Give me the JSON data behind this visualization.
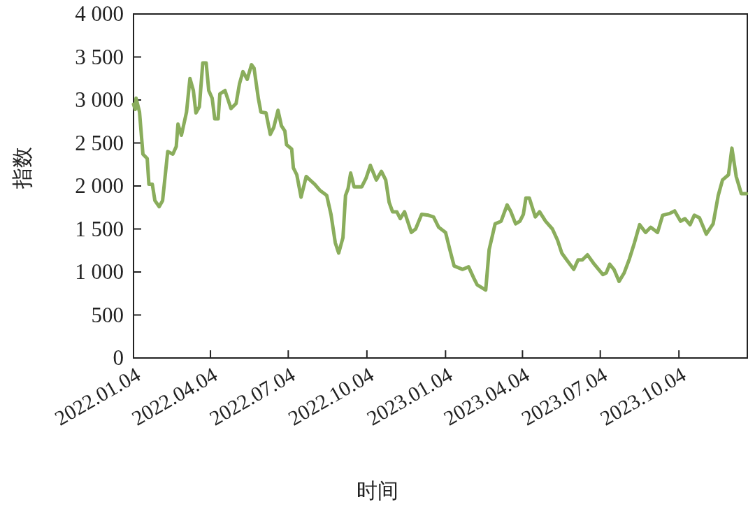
{
  "chart_data": {
    "type": "line",
    "xlabel": "时间",
    "ylabel": "指数",
    "x": [
      "2022-01-04",
      "2022-01-06",
      "2022-01-07",
      "2022-01-11",
      "2022-01-15",
      "2022-01-20",
      "2022-01-22",
      "2022-01-26",
      "2022-01-29",
      "2022-02-03",
      "2022-02-07",
      "2022-02-13",
      "2022-02-19",
      "2022-02-23",
      "2022-02-25",
      "2022-03-01",
      "2022-03-07",
      "2022-03-11",
      "2022-03-15",
      "2022-03-18",
      "2022-03-22",
      "2022-03-26",
      "2022-03-30",
      "2022-04-02",
      "2022-04-06",
      "2022-04-09",
      "2022-04-13",
      "2022-04-15",
      "2022-04-21",
      "2022-04-28",
      "2022-05-04",
      "2022-05-08",
      "2022-05-12",
      "2022-05-17",
      "2022-05-22",
      "2022-05-25",
      "2022-05-30",
      "2022-06-02",
      "2022-06-08",
      "2022-06-13",
      "2022-06-17",
      "2022-06-22",
      "2022-06-26",
      "2022-06-30",
      "2022-07-02",
      "2022-07-08",
      "2022-07-10",
      "2022-07-14",
      "2022-07-19",
      "2022-07-25",
      "2022-08-04",
      "2022-08-10",
      "2022-08-18",
      "2022-08-23",
      "2022-08-28",
      "2022-09-01",
      "2022-09-06",
      "2022-09-09",
      "2022-09-12",
      "2022-09-15",
      "2022-09-19",
      "2022-09-28",
      "2022-10-03",
      "2022-10-08",
      "2022-10-15",
      "2022-10-21",
      "2022-10-26",
      "2022-10-30",
      "2022-11-03",
      "2022-11-08",
      "2022-11-12",
      "2022-11-17",
      "2022-11-25",
      "2022-11-30",
      "2022-12-07",
      "2022-12-15",
      "2022-12-21",
      "2022-12-27",
      "2023-01-04",
      "2023-01-09",
      "2023-01-14",
      "2023-01-24",
      "2023-01-31",
      "2023-02-06",
      "2023-02-10",
      "2023-02-20",
      "2023-02-24",
      "2023-03-03",
      "2023-03-10",
      "2023-03-17",
      "2023-03-21",
      "2023-03-27",
      "2023-04-01",
      "2023-04-05",
      "2023-04-08",
      "2023-04-12",
      "2023-04-19",
      "2023-04-24",
      "2023-05-01",
      "2023-05-09",
      "2023-05-15",
      "2023-05-20",
      "2023-05-25",
      "2023-06-03",
      "2023-06-08",
      "2023-06-13",
      "2023-06-19",
      "2023-06-27",
      "2023-07-07",
      "2023-07-11",
      "2023-07-15",
      "2023-07-20",
      "2023-07-26",
      "2023-08-01",
      "2023-08-07",
      "2023-08-13",
      "2023-08-19",
      "2023-08-26",
      "2023-09-01",
      "2023-09-09",
      "2023-09-15",
      "2023-09-23",
      "2023-09-29",
      "2023-10-06",
      "2023-10-11",
      "2023-10-17",
      "2023-10-22",
      "2023-10-28",
      "2023-11-05",
      "2023-11-13",
      "2023-11-19",
      "2023-11-24",
      "2023-12-01",
      "2023-12-05",
      "2023-12-10",
      "2023-12-16",
      "2023-12-22"
    ],
    "series": [
      {
        "color": "#8aad5c",
        "values": [
          2950,
          2890,
          3020,
          2860,
          2370,
          2320,
          2020,
          2020,
          1830,
          1760,
          1830,
          2400,
          2370,
          2460,
          2720,
          2590,
          2860,
          3250,
          3110,
          2850,
          2920,
          3430,
          3430,
          3110,
          3020,
          2780,
          2780,
          3070,
          3110,
          2900,
          2960,
          3190,
          3330,
          3240,
          3410,
          3370,
          3020,
          2860,
          2850,
          2600,
          2680,
          2880,
          2700,
          2640,
          2480,
          2430,
          2210,
          2130,
          1870,
          2110,
          2020,
          1950,
          1890,
          1670,
          1340,
          1220,
          1400,
          1890,
          1970,
          2150,
          1990,
          1990,
          2090,
          2240,
          2070,
          2170,
          2070,
          1810,
          1700,
          1700,
          1620,
          1700,
          1460,
          1500,
          1670,
          1660,
          1640,
          1520,
          1460,
          1260,
          1070,
          1030,
          1060,
          930,
          850,
          790,
          1260,
          1560,
          1590,
          1780,
          1710,
          1560,
          1590,
          1670,
          1860,
          1860,
          1640,
          1700,
          1590,
          1500,
          1370,
          1220,
          1150,
          1030,
          1140,
          1140,
          1200,
          1090,
          970,
          990,
          1090,
          1030,
          890,
          990,
          1150,
          1340,
          1550,
          1460,
          1520,
          1460,
          1660,
          1680,
          1710,
          1590,
          1620,
          1550,
          1660,
          1630,
          1440,
          1560,
          1890,
          2070,
          2130,
          2440,
          2110,
          1910,
          1910
        ]
      }
    ],
    "xlim": [
      "2022-01-04",
      "2023-12-23"
    ],
    "xticks": [
      {
        "value": "2022-01-04",
        "label": "2022.01.04"
      },
      {
        "value": "2022-04-04",
        "label": "2022.04.04"
      },
      {
        "value": "2022-07-04",
        "label": "2022.07.04"
      },
      {
        "value": "2022-10-04",
        "label": "2022.10.04"
      },
      {
        "value": "2023-01-04",
        "label": "2023.01.04"
      },
      {
        "value": "2023-04-04",
        "label": "2023.04.04"
      },
      {
        "value": "2023-07-04",
        "label": "2023.07.04"
      },
      {
        "value": "2023-10-04",
        "label": "2023.10.04"
      }
    ],
    "ylim": [
      0,
      4000
    ],
    "yticks": [
      0,
      500,
      {
        "value": 1000,
        "label": "1 000"
      },
      {
        "value": 1500,
        "label": "1 500"
      },
      {
        "value": 2000,
        "label": "2 000"
      },
      {
        "value": 2500,
        "label": "2 500"
      },
      {
        "value": 3000,
        "label": "3 000"
      },
      {
        "value": 3500,
        "label": "3 500"
      },
      {
        "value": 4000,
        "label": "4 000"
      }
    ],
    "grid": false
  }
}
